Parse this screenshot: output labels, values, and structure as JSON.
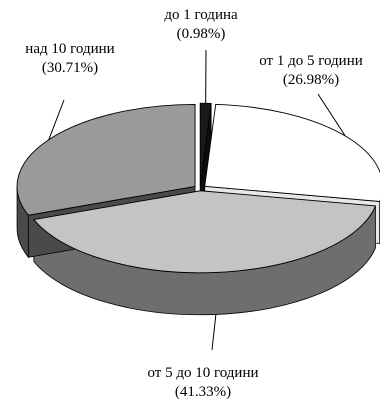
{
  "chart_data": {
    "type": "pie",
    "title": "",
    "labels": [
      "до 1 година",
      "от 1 до 5 години",
      "от 5 до 10 години",
      "над 10 години"
    ],
    "values": [
      0.98,
      26.98,
      41.33,
      30.71
    ],
    "value_labels": [
      "(0.98%)",
      "(26.98%)",
      "(41.33%)",
      "(30.71%)"
    ],
    "colors": [
      "#1a1a1a",
      "#ffffff",
      "#c4c4c4",
      "#9a9a9a"
    ],
    "side_colors": [
      "#0d0d0d",
      "#e8e8e8",
      "#6e6e6e",
      "#4a4a4a"
    ],
    "exploded": true,
    "style": "3d"
  }
}
